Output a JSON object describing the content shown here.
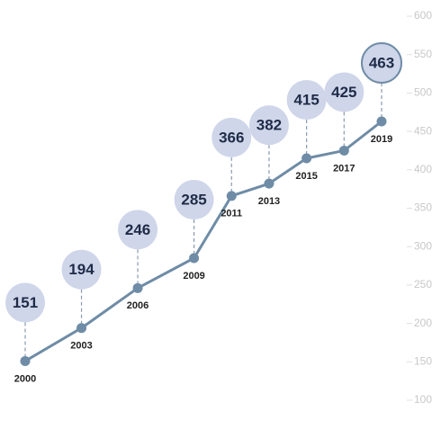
{
  "chart_data": {
    "type": "line",
    "x": [
      2000,
      2003,
      2006,
      2009,
      2011,
      2013,
      2015,
      2017,
      2019
    ],
    "series": [
      {
        "color": "#6f8ca6",
        "values": [
          151,
          194,
          246,
          285,
          366,
          382,
          415,
          425,
          463
        ]
      }
    ],
    "ylim": [
      100,
      600
    ],
    "yticks": [
      100,
      150,
      200,
      250,
      300,
      350,
      400,
      450,
      500,
      550,
      600
    ],
    "yaxis_side": "right",
    "grid": false
  }
}
